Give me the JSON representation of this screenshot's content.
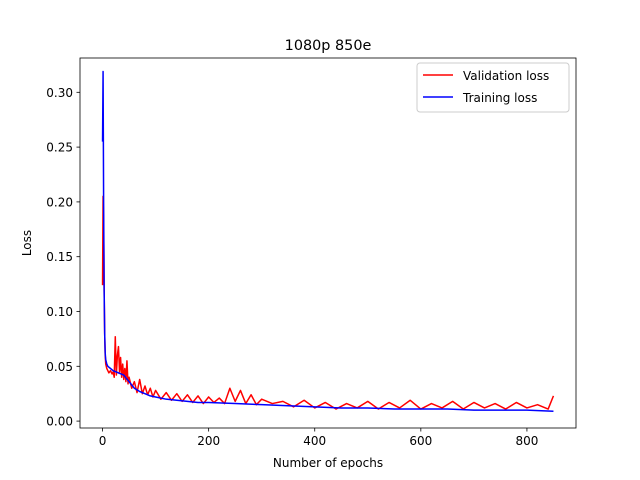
{
  "chart_data": {
    "type": "line",
    "title": "1080p 850e",
    "xlabel": "Number of epochs",
    "ylabel": "Loss",
    "xlim": [
      -42.5,
      892.5
    ],
    "ylim": [
      -0.0063,
      0.3313
    ],
    "x_ticks": [
      0,
      200,
      400,
      600,
      800
    ],
    "x_tick_labels": [
      "0",
      "200",
      "400",
      "600",
      "800"
    ],
    "y_ticks": [
      0.0,
      0.05,
      0.1,
      0.15,
      0.2,
      0.25,
      0.3
    ],
    "y_tick_labels": [
      "0.00",
      "0.05",
      "0.10",
      "0.15",
      "0.20",
      "0.25",
      "0.30"
    ],
    "legend_position": "top-right",
    "grid": false,
    "series": [
      {
        "name": "Validation loss",
        "color": "#ff0000",
        "x": [
          0,
          1,
          2,
          3,
          4,
          5,
          6,
          8,
          10,
          12,
          15,
          18,
          20,
          22,
          24,
          26,
          28,
          30,
          32,
          34,
          36,
          38,
          40,
          42,
          44,
          46,
          48,
          50,
          55,
          60,
          65,
          70,
          75,
          80,
          85,
          90,
          95,
          100,
          110,
          120,
          130,
          140,
          150,
          160,
          170,
          180,
          190,
          200,
          210,
          220,
          230,
          240,
          250,
          260,
          270,
          280,
          290,
          300,
          320,
          340,
          360,
          380,
          400,
          420,
          440,
          460,
          480,
          500,
          520,
          540,
          560,
          580,
          600,
          620,
          640,
          660,
          680,
          700,
          720,
          740,
          760,
          780,
          800,
          820,
          840,
          850
        ],
        "y": [
          0.124,
          0.205,
          0.18,
          0.12,
          0.08,
          0.06,
          0.052,
          0.048,
          0.046,
          0.044,
          0.046,
          0.043,
          0.045,
          0.04,
          0.077,
          0.042,
          0.06,
          0.068,
          0.045,
          0.058,
          0.04,
          0.052,
          0.038,
          0.048,
          0.036,
          0.055,
          0.034,
          0.04,
          0.03,
          0.036,
          0.026,
          0.038,
          0.025,
          0.032,
          0.024,
          0.03,
          0.022,
          0.028,
          0.02,
          0.026,
          0.019,
          0.025,
          0.018,
          0.024,
          0.017,
          0.023,
          0.016,
          0.022,
          0.017,
          0.021,
          0.016,
          0.03,
          0.018,
          0.028,
          0.016,
          0.024,
          0.015,
          0.02,
          0.016,
          0.018,
          0.013,
          0.019,
          0.012,
          0.017,
          0.011,
          0.016,
          0.012,
          0.018,
          0.011,
          0.017,
          0.012,
          0.019,
          0.011,
          0.016,
          0.012,
          0.018,
          0.011,
          0.017,
          0.012,
          0.016,
          0.011,
          0.017,
          0.012,
          0.015,
          0.011,
          0.023
        ]
      },
      {
        "name": "Training loss",
        "color": "#0000ff",
        "x": [
          0,
          1,
          2,
          3,
          4,
          5,
          6,
          8,
          10,
          15,
          20,
          25,
          30,
          40,
          50,
          60,
          70,
          80,
          90,
          100,
          120,
          140,
          160,
          180,
          200,
          250,
          300,
          350,
          400,
          450,
          500,
          550,
          600,
          650,
          700,
          750,
          800,
          850
        ],
        "y": [
          0.255,
          0.319,
          0.2,
          0.12,
          0.08,
          0.062,
          0.056,
          0.052,
          0.05,
          0.048,
          0.046,
          0.045,
          0.044,
          0.042,
          0.036,
          0.03,
          0.027,
          0.025,
          0.023,
          0.022,
          0.02,
          0.019,
          0.018,
          0.017,
          0.017,
          0.016,
          0.015,
          0.014,
          0.013,
          0.012,
          0.012,
          0.011,
          0.011,
          0.011,
          0.01,
          0.01,
          0.01,
          0.009
        ]
      }
    ]
  }
}
